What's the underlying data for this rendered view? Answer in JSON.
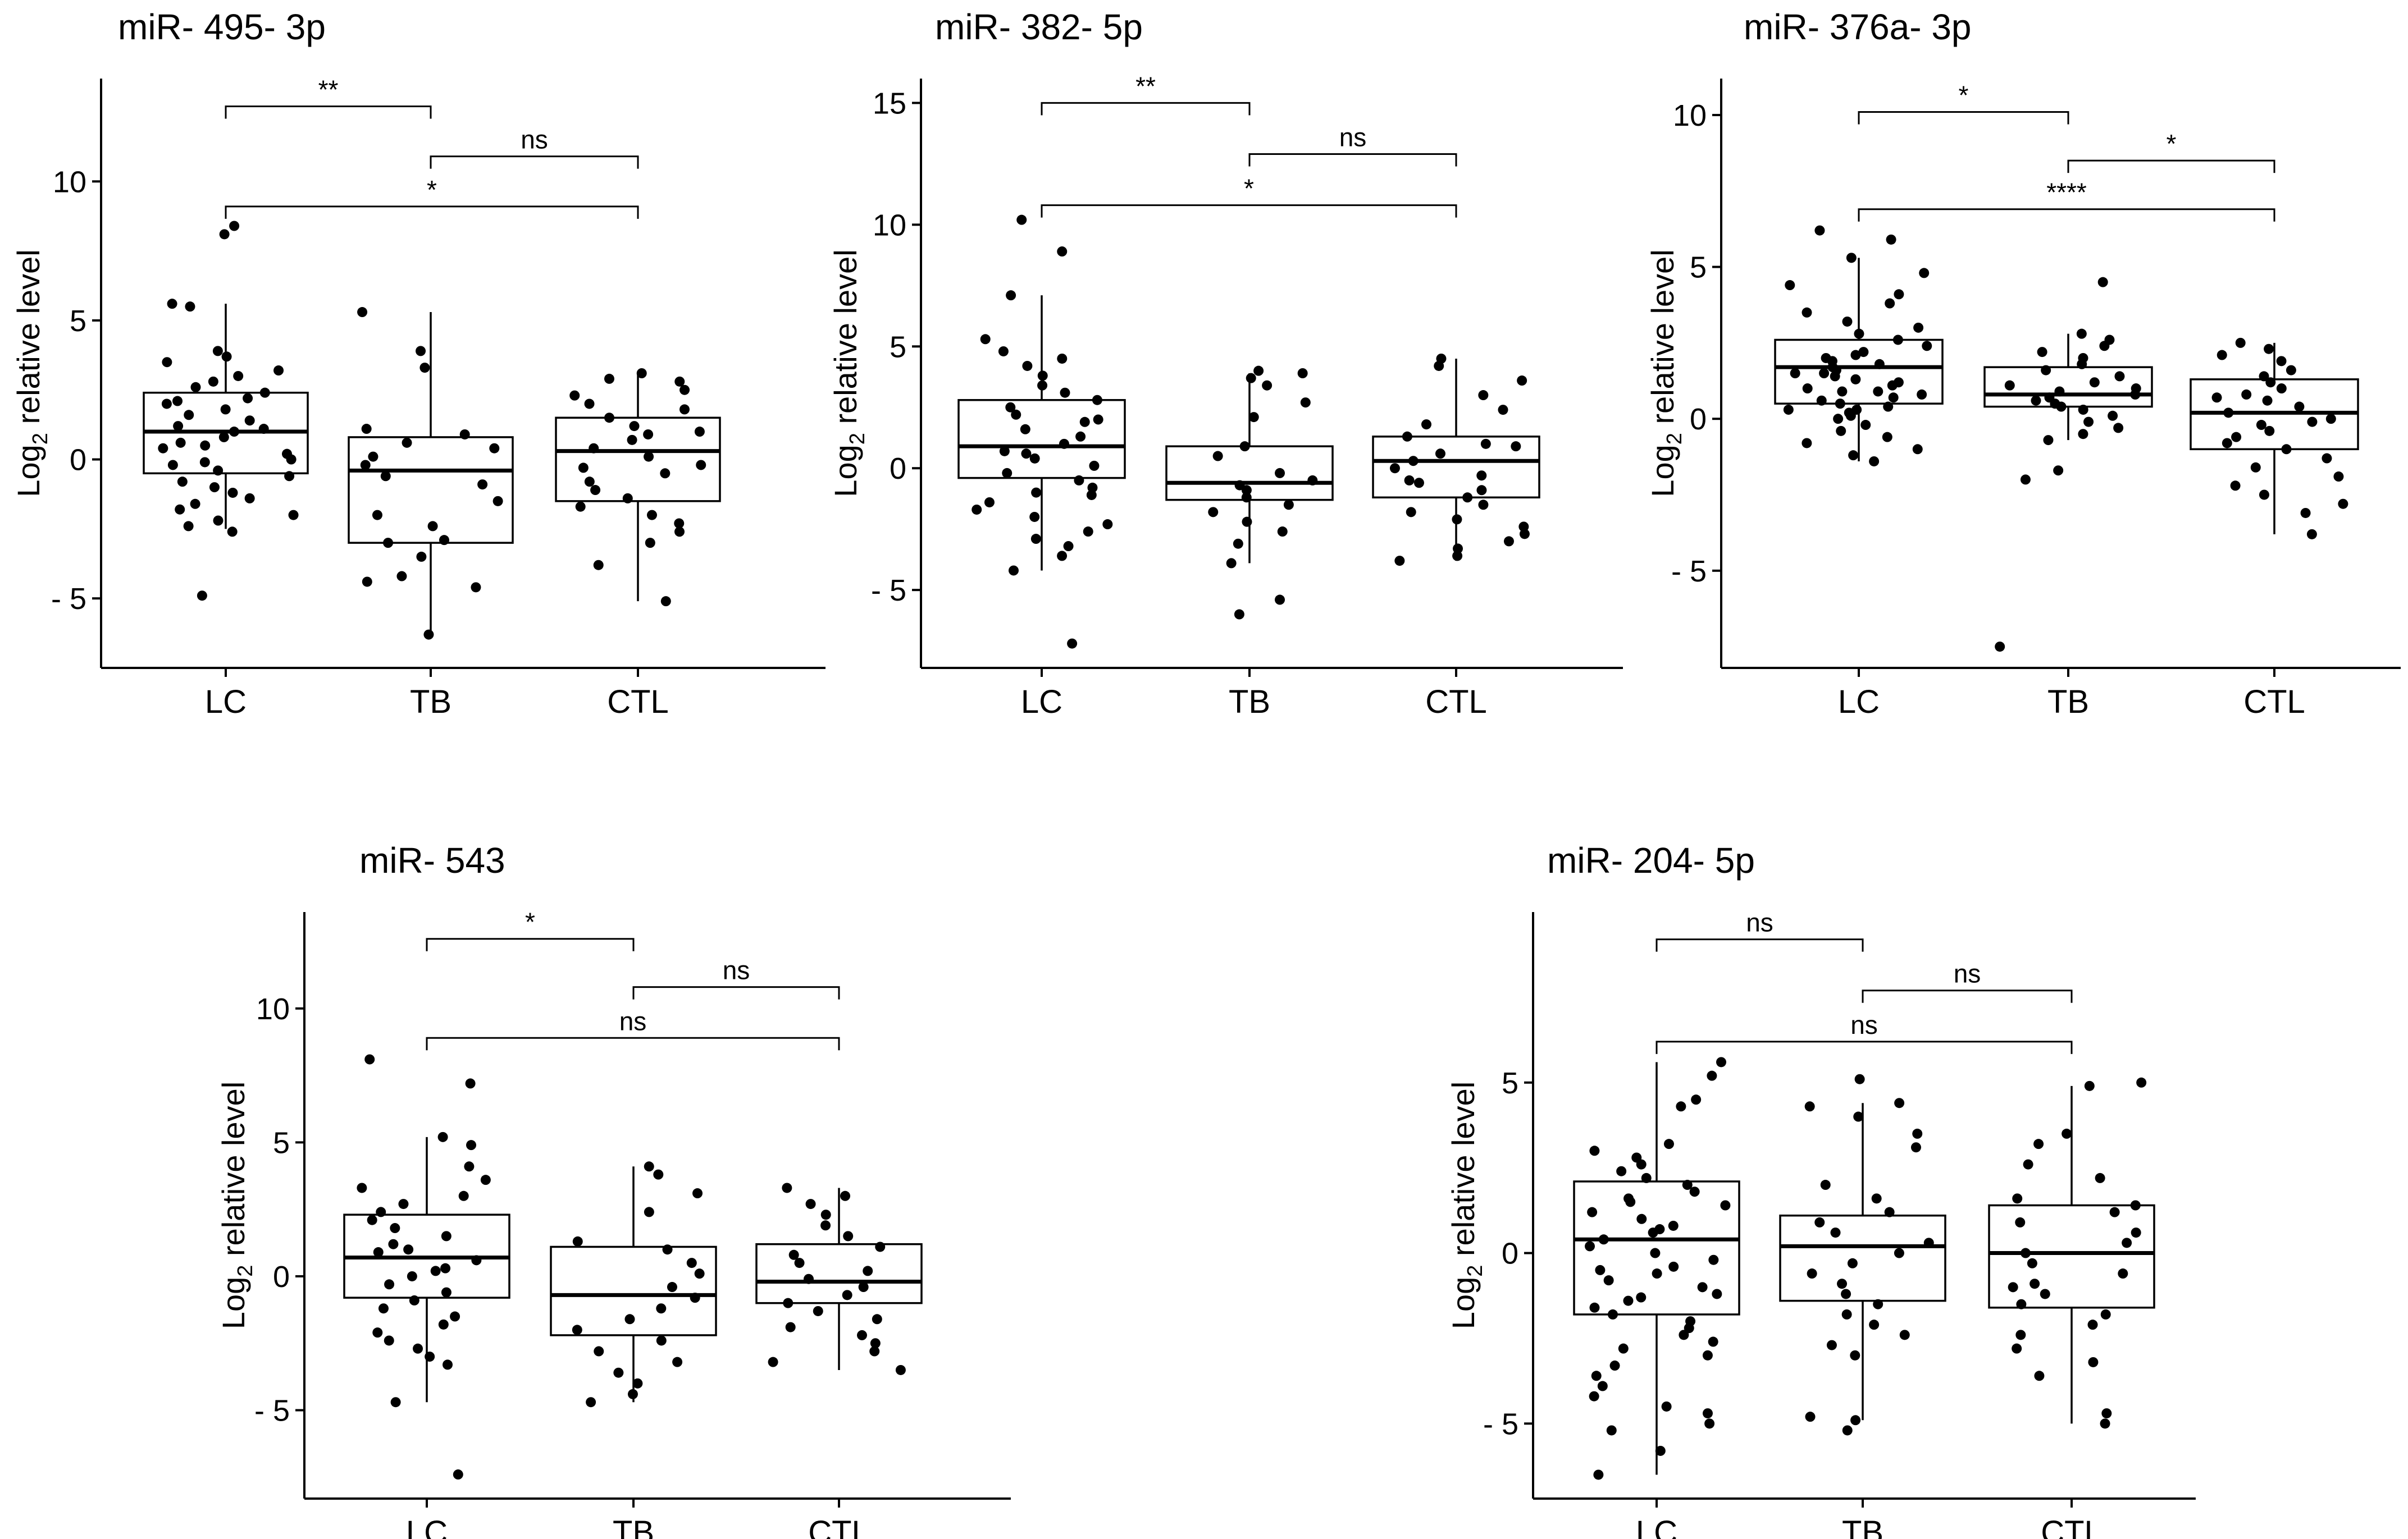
{
  "figure_title": "",
  "chart_data": [
    {
      "type": "boxplot",
      "title": "miR- 495- 3p",
      "ylabel_main": "Log",
      "ylabel_sub": "2",
      "ylabel_rest": " relative level",
      "categories": [
        "LC",
        "TB",
        "CTL"
      ],
      "ylim": [
        -7.5,
        13.7
      ],
      "yticks": [
        -5,
        0,
        5,
        10
      ],
      "ytick_labels": [
        "- 5",
        "0",
        "5",
        "10"
      ],
      "boxes": [
        {
          "q1": -0.5,
          "median": 1.0,
          "q3": 2.4,
          "whisker_low": -2.5,
          "whisker_high": 5.6
        },
        {
          "q1": -3.0,
          "median": -0.4,
          "q3": 0.8,
          "whisker_low": -6.3,
          "whisker_high": 5.3
        },
        {
          "q1": -1.5,
          "median": 0.3,
          "q3": 1.5,
          "whisker_low": -5.1,
          "whisker_high": 3.1
        }
      ],
      "points": [
        [
          8.1,
          8.4,
          5.6,
          5.5,
          3.9,
          3.7,
          3.5,
          3.2,
          3.0,
          2.8,
          2.6,
          2.4,
          2.2,
          2.0,
          1.8,
          1.6,
          1.4,
          1.2,
          1.0,
          0.8,
          0.6,
          0.4,
          0.2,
          0.0,
          -0.2,
          -0.4,
          -0.6,
          -0.8,
          -1.0,
          -1.2,
          -1.4,
          -1.6,
          -1.8,
          -2.0,
          -2.2,
          -2.4,
          -2.6,
          -4.9,
          2.1,
          1.1,
          0.5,
          -0.1
        ],
        [
          5.3,
          3.9,
          3.3,
          1.1,
          0.9,
          0.6,
          0.4,
          0.1,
          -0.2,
          -0.6,
          -0.9,
          -1.5,
          -2.0,
          -2.4,
          -2.9,
          -3.0,
          -3.5,
          -4.2,
          -4.6,
          -4.4,
          -6.3
        ],
        [
          3.1,
          2.9,
          2.8,
          2.5,
          2.3,
          2.0,
          1.8,
          1.5,
          1.2,
          1.0,
          0.7,
          0.4,
          0.1,
          -0.2,
          -0.5,
          -0.8,
          -1.1,
          -1.4,
          -1.7,
          -2.0,
          -2.3,
          -2.6,
          -3.0,
          -3.8,
          -5.1,
          0.9,
          -0.3
        ]
      ],
      "brackets": [
        {
          "from": 0,
          "to": 1,
          "label": "**",
          "y": 12.7
        },
        {
          "from": 1,
          "to": 2,
          "label": "ns",
          "y": 10.9
        },
        {
          "from": 0,
          "to": 2,
          "label": "*",
          "y": 9.1
        }
      ]
    },
    {
      "type": "boxplot",
      "title": "miR- 382- 5p",
      "ylabel_main": "Log",
      "ylabel_sub": "2",
      "ylabel_rest": " relative level",
      "categories": [
        "LC",
        "TB",
        "CTL"
      ],
      "ylim": [
        -8.2,
        16.0
      ],
      "yticks": [
        -5,
        0,
        5,
        10,
        15
      ],
      "ytick_labels": [
        "- 5",
        "0",
        "5",
        "10",
        "15"
      ],
      "boxes": [
        {
          "q1": -0.4,
          "median": 0.9,
          "q3": 2.8,
          "whisker_low": -4.2,
          "whisker_high": 7.1
        },
        {
          "q1": -1.3,
          "median": -0.6,
          "q3": 0.9,
          "whisker_low": -3.9,
          "whisker_high": 3.9
        },
        {
          "q1": -1.2,
          "median": 0.3,
          "q3": 1.3,
          "whisker_low": -3.8,
          "whisker_high": 4.5
        }
      ],
      "points": [
        [
          10.2,
          8.9,
          7.1,
          5.3,
          4.8,
          4.5,
          4.2,
          3.8,
          3.4,
          3.1,
          2.8,
          2.5,
          2.2,
          1.9,
          1.6,
          1.3,
          1.0,
          0.7,
          0.4,
          0.1,
          -0.2,
          -0.5,
          -0.8,
          -1.1,
          -1.4,
          -1.7,
          -2.0,
          -2.3,
          -2.6,
          -2.9,
          -3.2,
          -3.6,
          -4.2,
          -7.2,
          2.0,
          0.6,
          -1.0
        ],
        [
          3.9,
          3.7,
          3.4,
          2.7,
          2.1,
          0.9,
          0.5,
          -0.2,
          -0.5,
          -0.7,
          -0.9,
          -1.2,
          -1.5,
          -1.8,
          -2.2,
          -2.6,
          -3.1,
          -3.9,
          -5.4,
          -6.0,
          4.0
        ],
        [
          4.5,
          4.2,
          3.6,
          3.0,
          2.4,
          1.8,
          1.3,
          0.9,
          0.6,
          0.3,
          0.0,
          -0.3,
          -0.6,
          -0.9,
          -1.2,
          -1.5,
          -1.8,
          -2.1,
          -2.4,
          -2.7,
          -3.0,
          -3.3,
          -3.6,
          -3.8,
          1.0,
          -0.5
        ]
      ],
      "brackets": [
        {
          "from": 0,
          "to": 1,
          "label": "**",
          "y": 15.0
        },
        {
          "from": 1,
          "to": 2,
          "label": "ns",
          "y": 12.9
        },
        {
          "from": 0,
          "to": 2,
          "label": "*",
          "y": 10.8
        }
      ]
    },
    {
      "type": "boxplot",
      "title": "miR- 376a- 3p",
      "ylabel_main": "Log",
      "ylabel_sub": "2",
      "ylabel_rest": " relative level",
      "categories": [
        "LC",
        "TB",
        "CTL"
      ],
      "ylim": [
        -8.2,
        11.2
      ],
      "yticks": [
        -5,
        0,
        5,
        10
      ],
      "ytick_labels": [
        "- 5",
        "0",
        "5",
        "10"
      ],
      "boxes": [
        {
          "q1": 0.5,
          "median": 1.7,
          "q3": 2.6,
          "whisker_low": -1.4,
          "whisker_high": 5.3
        },
        {
          "q1": 0.4,
          "median": 0.8,
          "q3": 1.7,
          "whisker_low": -0.7,
          "whisker_high": 2.8
        },
        {
          "q1": -1.0,
          "median": 0.2,
          "q3": 1.3,
          "whisker_low": -3.8,
          "whisker_high": 2.5
        }
      ],
      "points": [
        [
          6.2,
          5.9,
          5.3,
          4.8,
          4.4,
          4.1,
          3.8,
          3.5,
          3.2,
          3.0,
          2.8,
          2.6,
          2.4,
          2.2,
          2.0,
          1.9,
          1.8,
          1.7,
          1.6,
          1.5,
          1.4,
          1.3,
          1.2,
          1.1,
          1.0,
          0.9,
          0.8,
          0.7,
          0.6,
          0.5,
          0.4,
          0.3,
          0.2,
          0.1,
          0.0,
          -0.2,
          -0.4,
          -0.6,
          -0.8,
          -1.0,
          -1.2,
          -1.4,
          2.1,
          1.5,
          0.9,
          0.3
        ],
        [
          4.5,
          2.8,
          2.6,
          2.4,
          2.2,
          2.0,
          1.8,
          1.6,
          1.4,
          1.2,
          1.1,
          1.0,
          0.9,
          0.8,
          0.7,
          0.6,
          0.5,
          0.4,
          0.3,
          0.1,
          -0.1,
          -0.3,
          -0.5,
          -0.7,
          -1.7,
          -2.0,
          -7.5
        ],
        [
          2.5,
          2.3,
          2.1,
          1.9,
          1.6,
          1.4,
          1.2,
          1.0,
          0.8,
          0.6,
          0.4,
          0.2,
          0.0,
          -0.2,
          -0.4,
          -0.6,
          -0.8,
          -1.0,
          -1.3,
          -1.6,
          -1.9,
          -2.2,
          -2.5,
          -2.8,
          -3.1,
          -3.8,
          0.7,
          -0.1
        ]
      ],
      "brackets": [
        {
          "from": 0,
          "to": 1,
          "label": "*",
          "y": 10.1
        },
        {
          "from": 1,
          "to": 2,
          "label": "*",
          "y": 8.5
        },
        {
          "from": 0,
          "to": 2,
          "label": "****",
          "y": 6.9
        }
      ]
    },
    {
      "type": "boxplot",
      "title": "miR- 543",
      "ylabel_main": "Log",
      "ylabel_sub": "2",
      "ylabel_rest": " relative level",
      "categories": [
        "LC",
        "TB",
        "CTL"
      ],
      "ylim": [
        -8.3,
        13.6
      ],
      "yticks": [
        -5,
        0,
        5,
        10
      ],
      "ytick_labels": [
        "- 5",
        "0",
        "5",
        "10"
      ],
      "boxes": [
        {
          "q1": -0.8,
          "median": 0.7,
          "q3": 2.3,
          "whisker_low": -4.7,
          "whisker_high": 5.2
        },
        {
          "q1": -2.2,
          "median": -0.7,
          "q3": 1.1,
          "whisker_low": -4.7,
          "whisker_high": 4.1
        },
        {
          "q1": -1.0,
          "median": -0.2,
          "q3": 1.2,
          "whisker_low": -3.5,
          "whisker_high": 3.3
        }
      ],
      "points": [
        [
          8.1,
          7.2,
          5.2,
          4.9,
          4.1,
          3.6,
          3.3,
          3.0,
          2.7,
          2.4,
          2.1,
          1.8,
          1.5,
          1.2,
          0.9,
          0.6,
          0.3,
          0.0,
          -0.3,
          -0.6,
          -0.9,
          -1.2,
          -1.5,
          -1.8,
          -2.1,
          -2.4,
          -2.7,
          -3.0,
          -3.3,
          -4.7,
          -7.4,
          1.0,
          0.2
        ],
        [
          4.1,
          3.8,
          3.1,
          2.4,
          1.3,
          1.0,
          0.5,
          0.1,
          -0.4,
          -0.8,
          -1.2,
          -1.6,
          -2.0,
          -2.4,
          -2.8,
          -3.2,
          -3.6,
          -4.0,
          -4.4,
          -4.7
        ],
        [
          3.3,
          3.0,
          2.7,
          2.3,
          1.9,
          1.5,
          1.1,
          0.8,
          0.5,
          0.2,
          -0.1,
          -0.4,
          -0.7,
          -1.0,
          -1.3,
          -1.6,
          -1.9,
          -2.2,
          -2.5,
          -2.8,
          -3.2,
          -3.5
        ]
      ],
      "brackets": [
        {
          "from": 0,
          "to": 1,
          "label": "*",
          "y": 12.6
        },
        {
          "from": 1,
          "to": 2,
          "label": "ns",
          "y": 10.8
        },
        {
          "from": 0,
          "to": 2,
          "label": "ns",
          "y": 8.9
        }
      ]
    },
    {
      "type": "boxplot",
      "title": "miR- 204- 5p",
      "ylabel_main": "Log",
      "ylabel_sub": "2",
      "ylabel_rest": " relative level",
      "categories": [
        "LC",
        "TB",
        "CTL"
      ],
      "ylim": [
        -7.2,
        10.0
      ],
      "yticks": [
        -5,
        0,
        5
      ],
      "ytick_labels": [
        "- 5",
        "0",
        "5"
      ],
      "boxes": [
        {
          "q1": -1.8,
          "median": 0.4,
          "q3": 2.1,
          "whisker_low": -6.5,
          "whisker_high": 5.6
        },
        {
          "q1": -1.4,
          "median": 0.2,
          "q3": 1.1,
          "whisker_low": -4.9,
          "whisker_high": 4.4
        },
        {
          "q1": -1.6,
          "median": 0.0,
          "q3": 1.4,
          "whisker_low": -5.0,
          "whisker_high": 4.9
        }
      ],
      "points": [
        [
          5.6,
          5.2,
          4.5,
          4.3,
          3.2,
          3.0,
          2.8,
          2.6,
          2.4,
          2.2,
          2.0,
          1.8,
          1.6,
          1.4,
          1.2,
          1.0,
          0.8,
          0.6,
          0.4,
          0.2,
          0.0,
          -0.2,
          -0.4,
          -0.6,
          -0.8,
          -1.0,
          -1.2,
          -1.4,
          -1.6,
          -1.8,
          -2.0,
          -2.2,
          -2.4,
          -2.6,
          -2.8,
          -3.0,
          -3.3,
          -3.6,
          -3.9,
          -4.2,
          -4.5,
          -4.7,
          -5.0,
          -5.2,
          -5.8,
          -6.5,
          1.5,
          0.7,
          -0.5,
          -1.3
        ],
        [
          5.1,
          4.4,
          4.3,
          4.0,
          3.5,
          3.1,
          2.0,
          1.6,
          1.2,
          0.9,
          0.6,
          0.3,
          0.0,
          -0.3,
          -0.6,
          -0.9,
          -1.2,
          -1.5,
          -1.8,
          -2.1,
          -2.4,
          -2.7,
          -3.0,
          -4.8,
          -4.9,
          -5.2
        ],
        [
          5.0,
          4.9,
          3.5,
          3.2,
          2.6,
          2.2,
          1.6,
          1.2,
          0.9,
          0.6,
          0.3,
          0.0,
          -0.3,
          -0.6,
          -0.9,
          -1.2,
          -1.5,
          -1.8,
          -2.1,
          -2.4,
          -2.8,
          -3.2,
          -3.6,
          -4.7,
          -5.0,
          1.4,
          -1.0
        ]
      ],
      "brackets": [
        {
          "from": 0,
          "to": 1,
          "label": "ns",
          "y": 9.2
        },
        {
          "from": 1,
          "to": 2,
          "label": "ns",
          "y": 7.7
        },
        {
          "from": 0,
          "to": 2,
          "label": "ns",
          "y": 6.2
        }
      ]
    }
  ]
}
